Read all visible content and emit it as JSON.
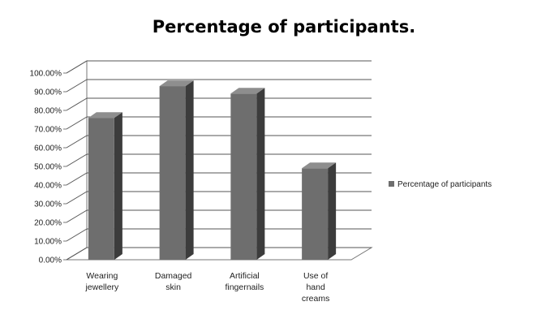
{
  "chart_data": {
    "type": "bar",
    "title": "Percentage of participants.",
    "categories": [
      [
        "Wearing",
        "jewellery"
      ],
      [
        "Damaged",
        "skin"
      ],
      [
        "Artificial",
        "fingernails"
      ],
      [
        "Use of",
        "hand",
        "creams"
      ]
    ],
    "series": [
      {
        "name": "Percentage of participants",
        "values": [
          0.76,
          0.93,
          0.89,
          0.49
        ]
      }
    ],
    "ylim": [
      0,
      1
    ],
    "yticks": [
      "0.00%",
      "10.00%",
      "20.00%",
      "30.00%",
      "40.00%",
      "50.00%",
      "60.00%",
      "70.00%",
      "80.00%",
      "90.00%",
      "100.00%"
    ],
    "xlabel": "",
    "ylabel": "",
    "grid": true,
    "three_d": true,
    "legend_position": "right",
    "colors": {
      "bar_front": "#6e6e6e",
      "bar_side": "#3c3c3c",
      "bar_top": "#8e8e8e",
      "grid": "#555555",
      "wall": "#777777"
    }
  }
}
